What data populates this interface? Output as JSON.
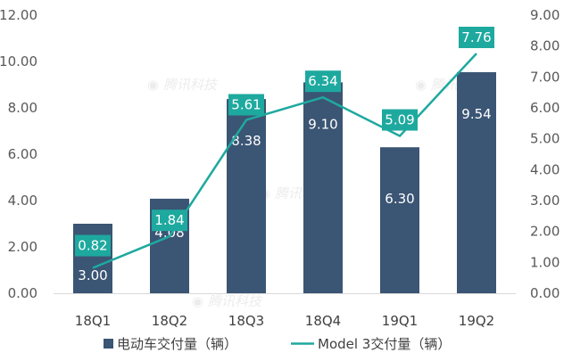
{
  "chart_data": {
    "type": "bar",
    "categories": [
      "18Q1",
      "18Q2",
      "18Q3",
      "18Q4",
      "19Q1",
      "19Q2"
    ],
    "series": [
      {
        "name": "电动车交付量（辆）",
        "type": "bar",
        "axis": "left",
        "values": [
          3.0,
          4.08,
          8.38,
          9.1,
          6.3,
          9.54
        ],
        "labels": [
          "3.00",
          "4.08",
          "8.38",
          "9.10",
          "6.30",
          "9.54"
        ],
        "color": "#3b5574"
      },
      {
        "name": "Model 3交付量（辆）",
        "type": "line",
        "axis": "right",
        "values": [
          0.82,
          1.84,
          5.61,
          6.34,
          5.09,
          7.76
        ],
        "labels": [
          "0.82",
          "1.84",
          "5.61",
          "6.34",
          "5.09",
          "7.76"
        ],
        "color": "#1ea99f"
      }
    ],
    "y_left": {
      "range": [
        0,
        12
      ],
      "ticks": [
        "0.00",
        "2.00",
        "4.00",
        "6.00",
        "8.00",
        "10.00",
        "12.00"
      ]
    },
    "y_right": {
      "range": [
        0,
        9
      ],
      "ticks": [
        "0.00",
        "1.00",
        "2.00",
        "3.00",
        "4.00",
        "5.00",
        "6.00",
        "7.00",
        "8.00",
        "9.00"
      ]
    },
    "grid": false,
    "legend_position": "bottom",
    "watermark": "腾讯科技"
  }
}
